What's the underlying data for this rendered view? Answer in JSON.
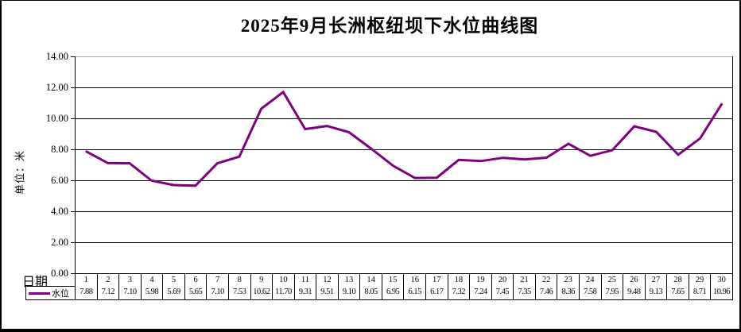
{
  "page": {
    "background": "#ffffff",
    "frame_border_color": "#000000"
  },
  "chart_data": {
    "type": "line",
    "title": "2025年9月长洲枢纽坝下水位曲线图",
    "xlabel": "日期",
    "ylabel": "单位：米",
    "ylim": [
      0,
      14
    ],
    "ytick_step": 2,
    "yticks": [
      "14.00",
      "12.00",
      "10.00",
      "8.00",
      "6.00",
      "4.00",
      "2.00",
      "0.00"
    ],
    "grid": "horizontal gridlines on",
    "legend_position": "bottom-left of data table",
    "categories": [
      1,
      2,
      3,
      4,
      5,
      6,
      7,
      8,
      9,
      10,
      11,
      12,
      13,
      14,
      15,
      16,
      17,
      18,
      19,
      20,
      21,
      22,
      23,
      24,
      25,
      26,
      27,
      28,
      29,
      30
    ],
    "series": [
      {
        "name": "水位",
        "color": "#800080",
        "values": [
          7.88,
          7.12,
          7.1,
          5.98,
          5.69,
          5.65,
          7.1,
          7.53,
          10.62,
          11.7,
          9.31,
          9.51,
          9.1,
          8.05,
          6.95,
          6.15,
          6.17,
          7.32,
          7.24,
          7.45,
          7.35,
          7.46,
          8.36,
          7.58,
          7.95,
          9.48,
          9.13,
          7.65,
          8.71,
          10.96
        ]
      }
    ],
    "colors": {
      "gridline": "#000000",
      "plot_border_top": "#a6a6a6",
      "axis": "#000000",
      "text": "#000000"
    }
  }
}
